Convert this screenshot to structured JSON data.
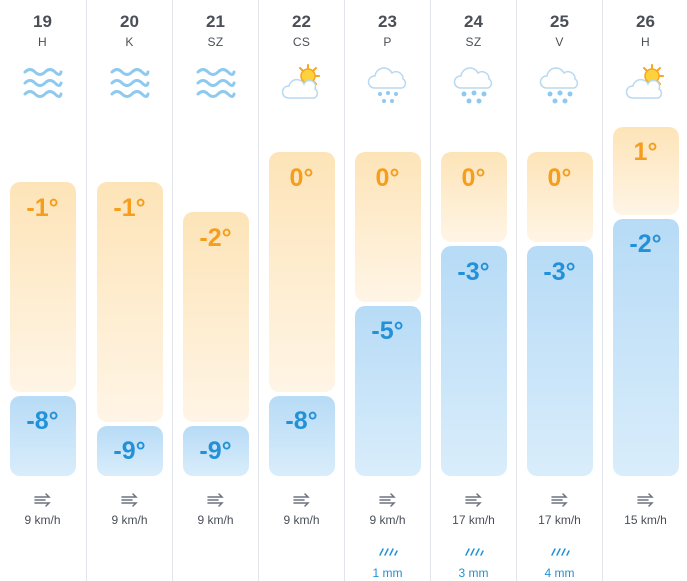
{
  "days": [
    {
      "date": "19",
      "dow": "H",
      "icon": "wind-icon",
      "max": "-1°",
      "min": "-8°",
      "wind": "9 km/h",
      "rain": ""
    },
    {
      "date": "20",
      "dow": "K",
      "icon": "wind-icon",
      "max": "-1°",
      "min": "-9°",
      "wind": "9 km/h",
      "rain": ""
    },
    {
      "date": "21",
      "dow": "SZ",
      "icon": "wind-icon",
      "max": "-2°",
      "min": "-9°",
      "wind": "9 km/h",
      "rain": ""
    },
    {
      "date": "22",
      "dow": "CS",
      "icon": "partly-cloudy-icon",
      "max": "0°",
      "min": "-8°",
      "wind": "9 km/h",
      "rain": ""
    },
    {
      "date": "23",
      "dow": "P",
      "icon": "snow-icon",
      "max": "0°",
      "min": "-5°",
      "wind": "9 km/h",
      "rain": "1 mm"
    },
    {
      "date": "24",
      "dow": "SZ",
      "icon": "snow-icon",
      "max": "0°",
      "min": "-3°",
      "wind": "17 km/h",
      "rain": "3 mm"
    },
    {
      "date": "25",
      "dow": "V",
      "icon": "snow-icon",
      "max": "0°",
      "min": "-3°",
      "wind": "17 km/h",
      "rain": "4 mm"
    },
    {
      "date": "26",
      "dow": "H",
      "icon": "partly-cloudy-icon",
      "max": "1°",
      "min": "-2°",
      "wind": "15 km/h",
      "rain": ""
    }
  ],
  "colors": {
    "max": "#f59d1c",
    "min": "#2391d7",
    "warm_bar": "#fde4b8",
    "cold_bar": "#b7dbf6",
    "icon_blue": "#8ec9ef"
  }
}
